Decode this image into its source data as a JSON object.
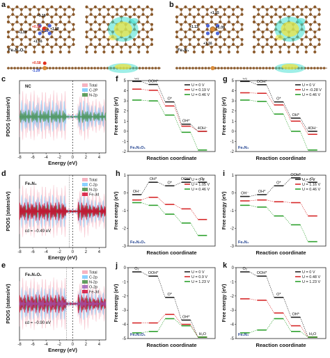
{
  "panels": {
    "a": {
      "label": "a",
      "formula": "Fe₁N₄O₁",
      "charges": [
        "+1.16",
        "+0.58",
        "-1.25",
        "+1.18",
        "+1.07",
        "+1.16",
        "+0.58",
        "-1.29"
      ]
    },
    "b": {
      "label": "b",
      "formula": "Fe₁N₄",
      "charges": [
        "+1.15",
        "+1.13",
        "+1.09",
        "+1.16"
      ]
    },
    "c": {
      "label": "c",
      "tag": "NC",
      "legend": [
        "Total",
        "C-2P",
        "N-2p"
      ],
      "xlabel": "Energy (eV)",
      "ylabel": "PDOS (states/eV)",
      "xticks": [
        "-8",
        "-6",
        "-4",
        "-2",
        "0",
        "2",
        "4"
      ]
    },
    "d": {
      "label": "d",
      "tag": "Fe₁N₄",
      "legend": [
        "Total",
        "C-2p",
        "N-2p",
        "Fe-3d"
      ],
      "xlabel": "Energy (eV)",
      "ylabel": "PDOS (states/eV)",
      "xticks": [
        "-8",
        "-6",
        "-4",
        "-2",
        "0",
        "2",
        "4"
      ],
      "annotation": "εd = −0.49 eV"
    },
    "e": {
      "label": "e",
      "tag": "Fe₁N₄O₁",
      "legend": [
        "Total",
        "C-2p",
        "N-2p",
        "O-2p",
        "Fe-3d"
      ],
      "xlabel": "Energy (eV)",
      "ylabel": "PDOS (states/eV)",
      "xticks": [
        "-8",
        "-6",
        "-4",
        "-2",
        "0",
        "2",
        "4"
      ],
      "annotation": "εd = −0.90 eV"
    }
  },
  "colors": {
    "black": "#222222",
    "red": "#d62728",
    "green": "#2ca02c",
    "total": "#f4a0b0",
    "c2p": "#6ec6ff",
    "n2p": "#3a8a3a",
    "o2p": "#9b59b6",
    "fe3d": "#d4002a"
  },
  "chart_data": [
    {
      "type": "line",
      "panel": "f",
      "tag": "Fe₁N₄O₁",
      "xlabel": "Reaction coordinate",
      "ylabel": "Free energy (eV)",
      "ylim": [
        -2,
        5
      ],
      "yticks": [
        -2,
        -1,
        0,
        1,
        2,
        3,
        4,
        5
      ],
      "labels": [
        "O₂",
        "OOH*",
        "O*",
        "OH*",
        "4OH⁻"
      ],
      "series": [
        {
          "name": "U = 0 V",
          "values": [
            4.92,
            4.62,
            2.9,
            0.7,
            0
          ]
        },
        {
          "name": "U = 0.19 V",
          "values": [
            4.16,
            4.05,
            2.5,
            0.5,
            0
          ]
        },
        {
          "name": "U = 0.46 V",
          "values": [
            3.08,
            3.0,
            1.6,
            -0.1,
            -1.85
          ]
        }
      ]
    },
    {
      "type": "line",
      "panel": "g",
      "tag": "Fe₁N₄",
      "xlabel": "Reaction coordinate",
      "ylabel": "Free energy (eV)",
      "ylim": [
        -2,
        5
      ],
      "yticks": [
        -2,
        -1,
        0,
        1,
        2,
        3,
        4,
        5
      ],
      "labels": [
        "O₂",
        "OOH*",
        "O*",
        "OH*",
        "4OH⁻"
      ],
      "series": [
        {
          "name": "U = 0 V",
          "values": [
            4.92,
            4.6,
            2.9,
            1.3,
            0
          ]
        },
        {
          "name": "U = -0.28 V",
          "values": [
            3.8,
            3.75,
            2.6,
            1.0,
            -0.3
          ]
        },
        {
          "name": "U = 0.46 V",
          "values": [
            3.08,
            2.95,
            1.7,
            0.0,
            -1.85
          ]
        }
      ]
    },
    {
      "type": "line",
      "panel": "h",
      "tag": "Fe₁N₄O₁",
      "xlabel": "Reaction coordinate",
      "ylabel": "Free energy (eV)",
      "ylim": [
        -3,
        1
      ],
      "yticks": [
        -3,
        -2,
        -1,
        0,
        1
      ],
      "labels": [
        "OH⁻",
        "OH*",
        "O*",
        "OOH*",
        "O₂"
      ],
      "series": [
        {
          "name": "U = 0 V",
          "values": [
            -0.1,
            0.6,
            0.4,
            0.6,
            0.6
          ]
        },
        {
          "name": "U = 1.05 V",
          "values": [
            -0.4,
            -0.25,
            -0.65,
            -0.9,
            -1.5
          ]
        },
        {
          "name": "U = 0.46 V",
          "values": [
            -0.55,
            -0.7,
            -1.2,
            -1.7,
            -2.4
          ]
        }
      ]
    },
    {
      "type": "line",
      "panel": "i",
      "tag": "Fe₁N₄",
      "xlabel": "Reaction coordinate",
      "ylabel": "Free energy (eV)",
      "ylim": [
        -3,
        1
      ],
      "yticks": [
        -3,
        -2,
        -1,
        0,
        1
      ],
      "labels": [
        "OH⁻",
        "OH*",
        "O*",
        "OOH*",
        "O₂"
      ],
      "series": [
        {
          "name": "U = 0 V",
          "values": [
            -0.2,
            -0.1,
            0.4,
            0.85,
            0.6
          ]
        },
        {
          "name": "U = 1.16 V",
          "values": [
            -0.45,
            -0.4,
            -0.5,
            -0.55,
            -1.3
          ]
        },
        {
          "name": "U = 0.46 V",
          "values": [
            -0.7,
            -0.8,
            -1.3,
            -1.8,
            -2.75
          ]
        }
      ]
    },
    {
      "type": "line",
      "panel": "j",
      "tag": "Fe₁N₄O₁",
      "xlabel": "Reaction coordinate",
      "ylabel": "Free energy (eV)",
      "ylim": [
        -5,
        0
      ],
      "yticks": [
        -5,
        -4,
        -3,
        -2,
        -1,
        0
      ],
      "labels": [
        "O₂",
        "OOH*",
        "O*",
        "OH*",
        "H₂O"
      ],
      "series": [
        {
          "name": "U = 0 V",
          "values": [
            -0.3,
            -0.6,
            -2.1,
            -3.7,
            -4.9
          ]
        },
        {
          "name": "U = 0.9 V",
          "values": [
            -3.9,
            -3.9,
            -3.3,
            -4.0,
            -4.9
          ]
        },
        {
          "name": "U = 1.23 V",
          "values": [
            -4.6,
            -4.5,
            -3.6,
            -4.1,
            -4.9
          ]
        }
      ]
    },
    {
      "type": "line",
      "panel": "k",
      "tag": "Fe₁N₄",
      "xlabel": "Reaction coordinate",
      "ylabel": "Free energy (eV)",
      "ylim": [
        -5,
        0
      ],
      "yticks": [
        -5,
        -4,
        -3,
        -2,
        -1,
        0
      ],
      "labels": [
        "O₂",
        "OOH*",
        "O*",
        "OH*",
        "H₂O"
      ],
      "series": [
        {
          "name": "U = 0 V",
          "values": [
            -0.3,
            -0.6,
            -2.1,
            -3.5,
            -4.9
          ]
        },
        {
          "name": "U = 0.48 V",
          "values": [
            -2.2,
            -2.3,
            -3.2,
            -4.1,
            -4.9
          ]
        },
        {
          "name": "U = 1.23 V",
          "values": [
            -4.6,
            -4.4,
            -3.6,
            -4.5,
            -4.9
          ]
        }
      ]
    }
  ]
}
